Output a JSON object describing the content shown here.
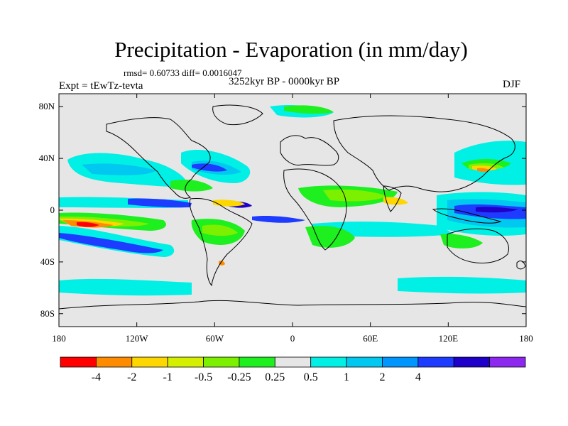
{
  "title": "Precipitation - Evaporation (in mm/day)",
  "stats": "rmsd= 0.60733 diff= 0.0016047",
  "period": "3252kyr BP - 0000kyr BP",
  "experiment": "Expt = tEwTz-tevta",
  "season": "DJF",
  "map": {
    "lon_range": [
      -180,
      180
    ],
    "lat_range": [
      -90,
      90
    ],
    "background_color": "#e6e6e6",
    "x_ticks": [
      {
        "label": "180",
        "lon": -180
      },
      {
        "label": "120W",
        "lon": -120
      },
      {
        "label": "60W",
        "lon": -60
      },
      {
        "label": "0",
        "lon": 0
      },
      {
        "label": "60E",
        "lon": 60
      },
      {
        "label": "120E",
        "lon": 120
      },
      {
        "label": "180",
        "lon": 180
      }
    ],
    "y_ticks": [
      {
        "label": "80N",
        "lat": 80
      },
      {
        "label": "40N",
        "lat": 40
      },
      {
        "label": "0",
        "lat": 0
      },
      {
        "label": "40S",
        "lat": -40
      },
      {
        "label": "80S",
        "lat": -80
      }
    ]
  },
  "colorbar": {
    "colors": [
      "#ff0000",
      "#ff8c00",
      "#ffd700",
      "#d4f000",
      "#7df000",
      "#1eef1e",
      "#e6e6e6",
      "#00f0e6",
      "#00c8f0",
      "#0096ff",
      "#1e3cff",
      "#1e00c8",
      "#8c28f0"
    ],
    "labels": [
      "-4",
      "-2",
      "-1",
      "-0.5",
      "-0.25",
      "0.25",
      "0.5",
      "1",
      "2",
      "4"
    ]
  }
}
